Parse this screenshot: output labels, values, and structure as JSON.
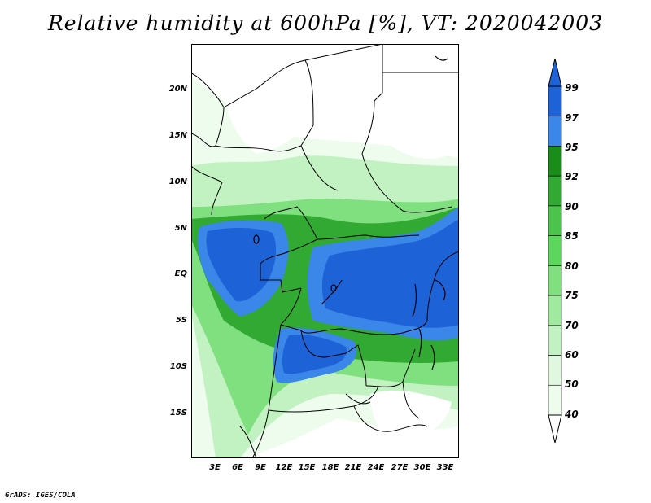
{
  "title": "Relative humidity at 600hPa [%], VT: 2020042003",
  "lat_labels": [
    "20N",
    "15N",
    "10N",
    "5N",
    "EQ",
    "5S",
    "10S",
    "15S"
  ],
  "lon_labels": [
    "3E",
    "6E",
    "9E",
    "12E",
    "15E",
    "18E",
    "21E",
    "24E",
    "27E",
    "30E",
    "33E"
  ],
  "colorbar": {
    "labels": [
      "99",
      "97",
      "95",
      "92",
      "90",
      "85",
      "80",
      "75",
      "70",
      "60",
      "50",
      "40"
    ],
    "colors": [
      "#1d62d6",
      "#3b86e9",
      "#198c19",
      "#32a932",
      "#4cc44c",
      "#5cd65c",
      "#80e080",
      "#a0eaa0",
      "#c2f2c2",
      "#dff8df",
      "#eefcee"
    ]
  },
  "credit": "GrADS: IGES/COLA"
}
